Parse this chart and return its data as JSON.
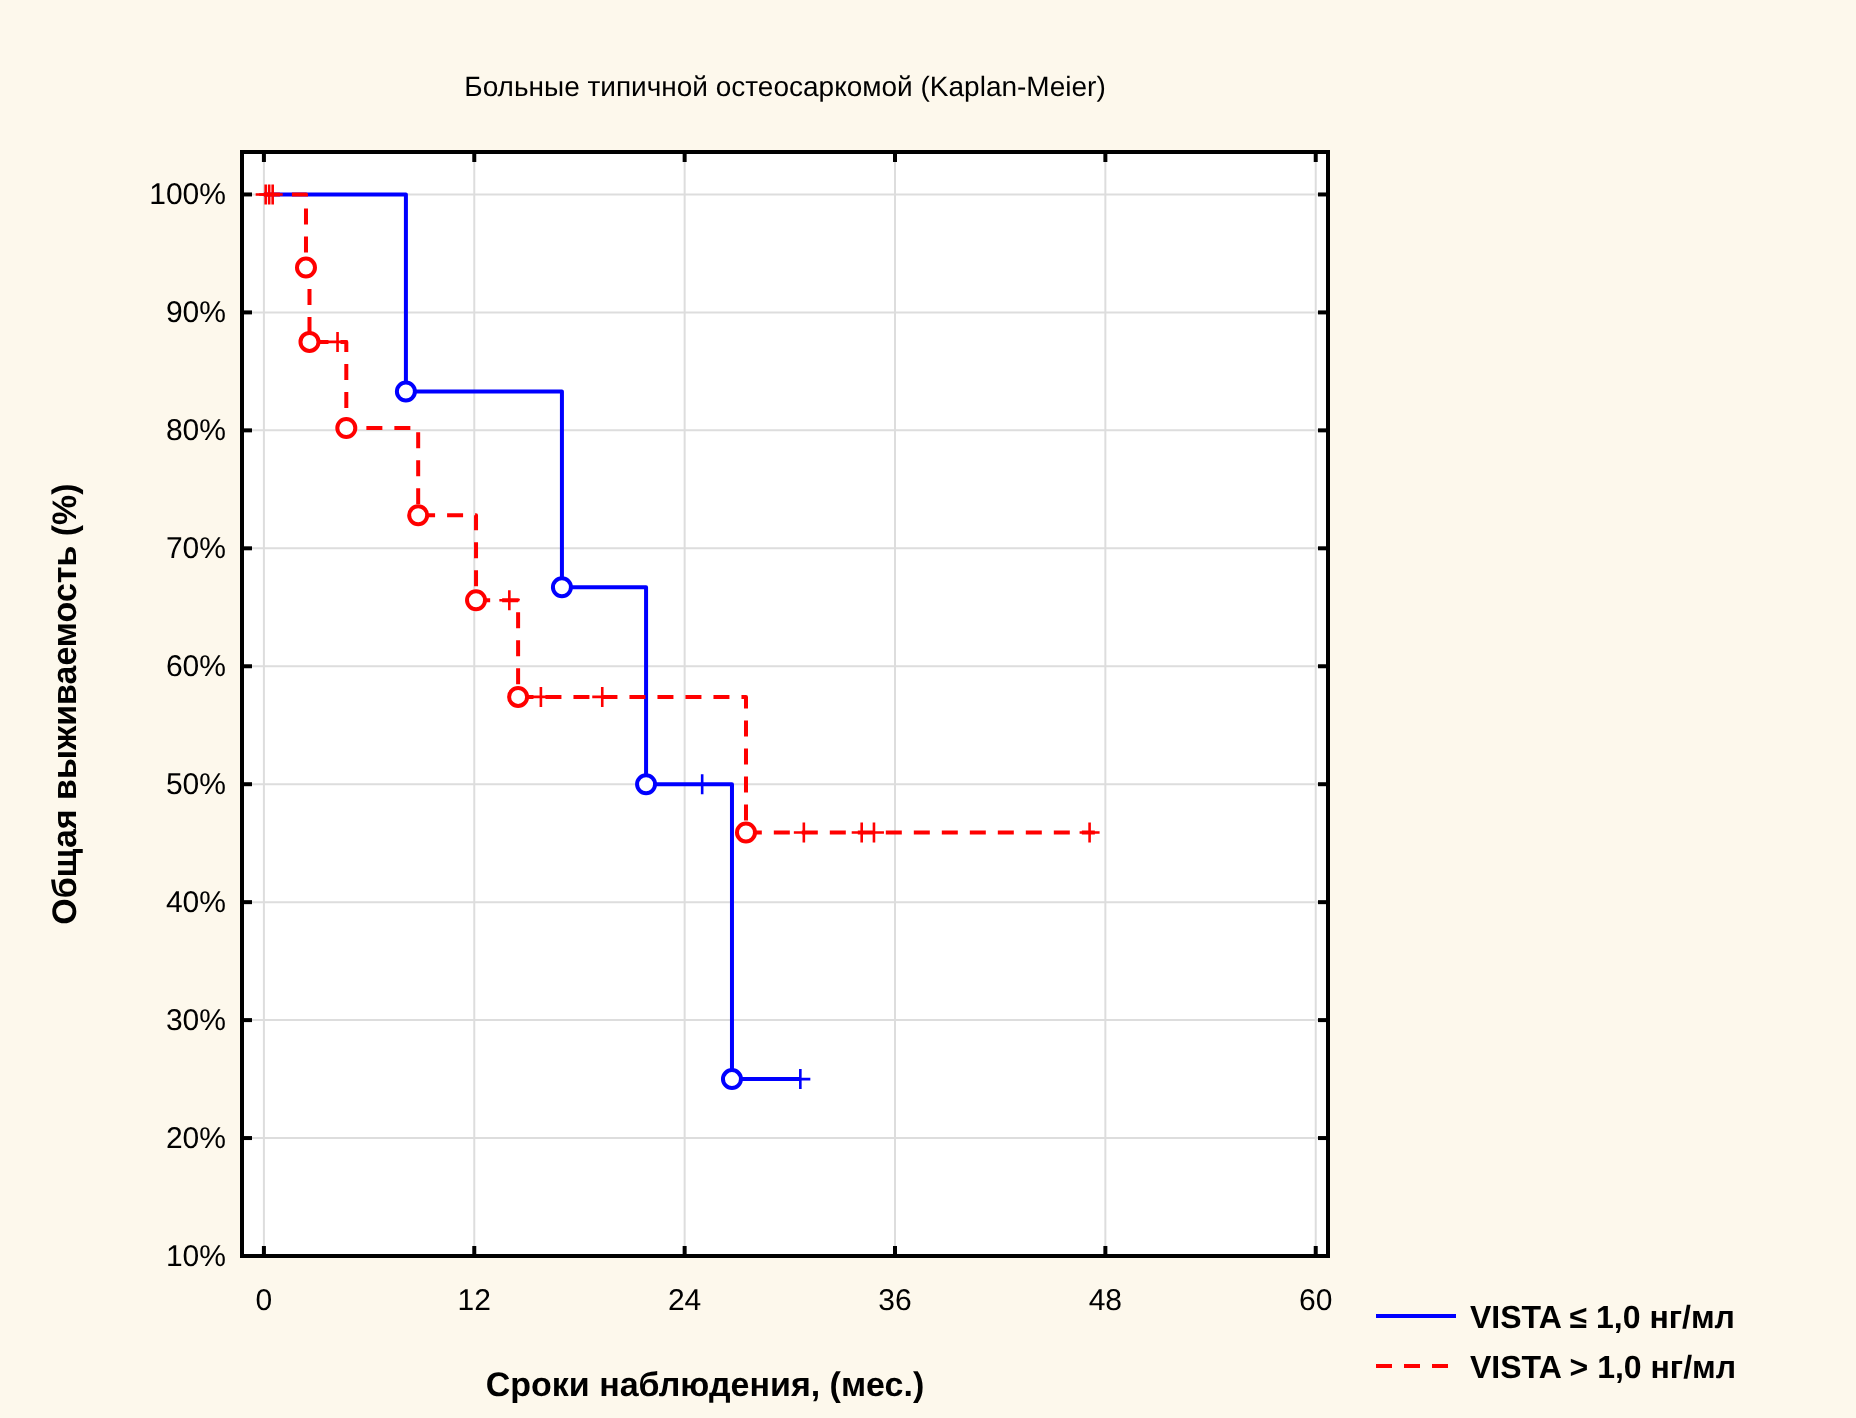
{
  "chart_data": {
    "type": "step",
    "title": "Больные типичной остеосаркомой (Kaplan-Meier)",
    "xlabel": "Сроки наблюдения, (мес.)",
    "ylabel": "Общая выживаемость (%)",
    "xlim": [
      -1.25,
      60.7
    ],
    "ylim": [
      10,
      103.6
    ],
    "xticks": [
      0,
      12,
      24,
      36,
      48,
      60
    ],
    "yticks": [
      {
        "value": 10,
        "label": "10%"
      },
      {
        "value": 20,
        "label": "20%"
      },
      {
        "value": 30,
        "label": "30%"
      },
      {
        "value": 40,
        "label": "40%"
      },
      {
        "value": 50,
        "label": "50%"
      },
      {
        "value": 60,
        "label": "60%"
      },
      {
        "value": 70,
        "label": "70%"
      },
      {
        "value": 80,
        "label": "80%"
      },
      {
        "value": 90,
        "label": "90%"
      },
      {
        "value": 100,
        "label": "100%"
      }
    ],
    "grid": true,
    "legend": "bottom right",
    "series": [
      {
        "name": "VISTA ≤ 1,0 нг/мл",
        "color": "#0000ff",
        "line_style": "solid",
        "x": [
          0,
          8.1,
          17.0,
          21.8,
          26.7,
          30.6
        ],
        "values": [
          100,
          83.3,
          66.7,
          50,
          25,
          25
        ]
      },
      {
        "name": "VISTA > 1,0 нг/мл",
        "color": "#ff0000",
        "line_style": "dashed",
        "x": [
          0,
          2.4,
          2.6,
          4.7,
          8.8,
          12.1,
          14.5,
          27.5,
          47.4
        ],
        "values": [
          100,
          93.8,
          87.5,
          80.2,
          72.8,
          65.6,
          57.4,
          45.9,
          45.9
        ]
      },
      {
        "type": "scatter",
        "color": "#0000ff",
        "marker": "circle",
        "x": [
          8.1,
          17.0,
          21.8,
          26.7
        ],
        "values": [
          83.3,
          66.7,
          50,
          25
        ]
      },
      {
        "type": "scatter",
        "color": "#ff0000",
        "marker": "circle",
        "x": [
          2.4,
          2.6,
          4.7,
          8.8,
          12.1,
          14.5,
          27.5
        ],
        "values": [
          93.8,
          87.5,
          80.2,
          72.8,
          65.6,
          57.4,
          45.9
        ]
      },
      {
        "type": "scatter",
        "color": "#0000ff",
        "marker": "cross",
        "x": [
          25.0,
          30.6
        ],
        "values": [
          50,
          25
        ]
      },
      {
        "type": "scatter",
        "color": "#ff0000",
        "marker": "cross",
        "x": [
          0.1,
          0.3,
          0.5,
          4.2,
          14.0,
          15.8,
          19.3,
          30.8,
          34.1,
          34.8,
          47.1
        ],
        "values": [
          100,
          100,
          100,
          87.5,
          65.6,
          57.4,
          57.4,
          45.9,
          45.9,
          45.9,
          45.9
        ]
      }
    ]
  }
}
